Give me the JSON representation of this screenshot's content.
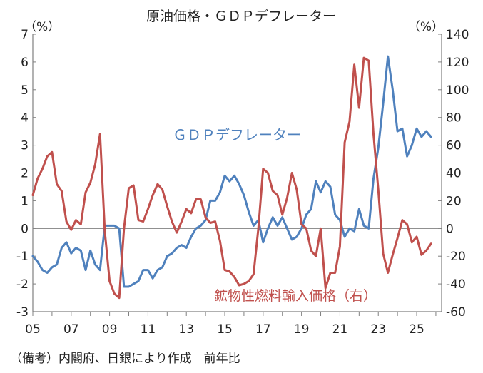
{
  "title": "原油価格・ＧＤＰデフレーター",
  "left_unit": "（%）",
  "right_unit": "（%）",
  "source_note": "（備考）内閣府、日銀により作成　前年比",
  "colors": {
    "gdp": "#4f81bd",
    "oil": "#c0504d",
    "axis": "#808080",
    "text": "#222222"
  },
  "chart_data": {
    "type": "line",
    "title": "原油価格・ＧＤＰデフレーター",
    "x_tick_labels": [
      "05",
      "07",
      "09",
      "11",
      "13",
      "15",
      "17",
      "19",
      "21",
      "23",
      "25"
    ],
    "x_tick_years": [
      2005,
      2007,
      2009,
      2011,
      2013,
      2015,
      2017,
      2019,
      2021,
      2023,
      2025
    ],
    "xlim": [
      2005,
      2026.3
    ],
    "y_left": {
      "min": -3,
      "max": 7,
      "step": 1,
      "ticks": [
        "-3",
        "-2",
        "-1",
        "0",
        "1",
        "2",
        "3",
        "4",
        "5",
        "6",
        "7"
      ]
    },
    "y_right": {
      "min": -60,
      "max": 140,
      "step": 20,
      "ticks": [
        "-60",
        "-40",
        "-20",
        "0",
        "20",
        "40",
        "60",
        "80",
        "100",
        "120",
        "140"
      ]
    },
    "zero_line": true,
    "grid": false,
    "series": [
      {
        "name": "ＧＤＰデフレーター",
        "axis": "left",
        "color": "#4f81bd",
        "x": [
          2005.0,
          2005.25,
          2005.5,
          2005.75,
          2006.0,
          2006.25,
          2006.5,
          2006.75,
          2007.0,
          2007.25,
          2007.5,
          2007.75,
          2008.0,
          2008.25,
          2008.5,
          2008.75,
          2009.0,
          2009.25,
          2009.5,
          2009.75,
          2010.0,
          2010.25,
          2010.5,
          2010.75,
          2011.0,
          2011.25,
          2011.5,
          2011.75,
          2012.0,
          2012.25,
          2012.5,
          2012.75,
          2013.0,
          2013.25,
          2013.5,
          2013.75,
          2014.0,
          2014.25,
          2014.5,
          2014.75,
          2015.0,
          2015.25,
          2015.5,
          2015.75,
          2016.0,
          2016.25,
          2016.5,
          2016.75,
          2017.0,
          2017.25,
          2017.5,
          2017.75,
          2018.0,
          2018.25,
          2018.5,
          2018.75,
          2019.0,
          2019.25,
          2019.5,
          2019.75,
          2020.0,
          2020.25,
          2020.5,
          2020.75,
          2021.0,
          2021.25,
          2021.5,
          2021.75,
          2022.0,
          2022.25,
          2022.5,
          2022.75,
          2023.0,
          2023.25,
          2023.5,
          2023.75,
          2024.0,
          2024.25,
          2024.5,
          2024.75,
          2025.0,
          2025.25,
          2025.5,
          2025.75
        ],
        "values": [
          -1.0,
          -1.2,
          -1.5,
          -1.6,
          -1.4,
          -1.3,
          -0.7,
          -0.5,
          -0.9,
          -0.7,
          -0.8,
          -1.5,
          -0.8,
          -1.3,
          -1.5,
          0.1,
          0.1,
          0.1,
          0.0,
          -2.1,
          -2.1,
          -2.0,
          -1.9,
          -1.5,
          -1.5,
          -1.8,
          -1.5,
          -1.4,
          -1.0,
          -0.9,
          -0.7,
          -0.6,
          -0.7,
          -0.3,
          0.0,
          0.1,
          0.3,
          1.0,
          1.0,
          1.3,
          1.9,
          1.7,
          1.9,
          1.6,
          1.2,
          0.6,
          0.1,
          0.3,
          -0.5,
          0.0,
          0.4,
          0.1,
          0.4,
          0.0,
          -0.4,
          -0.3,
          0.0,
          0.5,
          0.7,
          1.7,
          1.3,
          1.7,
          1.5,
          0.5,
          0.3,
          -0.3,
          0.0,
          -0.1,
          0.7,
          0.1,
          0.0,
          1.8,
          2.9,
          4.5,
          6.2,
          5.0,
          3.5,
          3.6,
          2.6,
          3.0,
          3.6,
          3.3,
          3.5,
          3.3
        ]
      },
      {
        "name": "鉱物性燃料輸入価格（右）",
        "axis": "right",
        "color": "#c0504d",
        "x": [
          2005.0,
          2005.25,
          2005.5,
          2005.75,
          2006.0,
          2006.25,
          2006.5,
          2006.75,
          2007.0,
          2007.25,
          2007.5,
          2007.75,
          2008.0,
          2008.25,
          2008.5,
          2008.75,
          2009.0,
          2009.25,
          2009.5,
          2009.75,
          2010.0,
          2010.25,
          2010.5,
          2010.75,
          2011.0,
          2011.25,
          2011.5,
          2011.75,
          2012.0,
          2012.25,
          2012.5,
          2012.75,
          2013.0,
          2013.25,
          2013.5,
          2013.75,
          2014.0,
          2014.25,
          2014.5,
          2014.75,
          2015.0,
          2015.25,
          2015.5,
          2015.75,
          2016.0,
          2016.25,
          2016.5,
          2016.75,
          2017.0,
          2017.25,
          2017.5,
          2017.75,
          2018.0,
          2018.25,
          2018.5,
          2018.75,
          2019.0,
          2019.25,
          2019.5,
          2019.75,
          2020.0,
          2020.25,
          2020.5,
          2020.75,
          2021.0,
          2021.25,
          2021.5,
          2021.75,
          2022.0,
          2022.25,
          2022.5,
          2022.75,
          2023.0,
          2023.25,
          2023.5,
          2023.75,
          2024.0,
          2024.25,
          2024.5,
          2024.75,
          2025.0,
          2025.25,
          2025.5,
          2025.75
        ],
        "values": [
          24,
          36,
          43,
          52,
          55,
          32,
          27,
          5,
          -1,
          6,
          3,
          26,
          33,
          46,
          68,
          -2,
          -38,
          -47,
          -50,
          0,
          29,
          31,
          6,
          5,
          14,
          24,
          32,
          28,
          16,
          5,
          -3,
          5,
          14,
          11,
          21,
          21,
          8,
          4,
          5,
          -9,
          -30,
          -31,
          -35,
          -41,
          -40,
          -38,
          -33,
          0,
          43,
          40,
          27,
          24,
          10,
          22,
          40,
          28,
          3,
          0,
          -16,
          -20,
          0,
          -43,
          -32,
          -32,
          -13,
          62,
          77,
          118,
          87,
          123,
          121,
          68,
          28,
          -18,
          -32,
          -19,
          -7,
          6,
          3,
          -10,
          -6,
          -19,
          -16,
          -11
        ]
      }
    ],
    "labels": [
      {
        "text": "ＧＤＰデフレーター",
        "series": 0
      },
      {
        "text": "鉱物性燃料輸入価格（右）",
        "series": 1
      }
    ]
  }
}
